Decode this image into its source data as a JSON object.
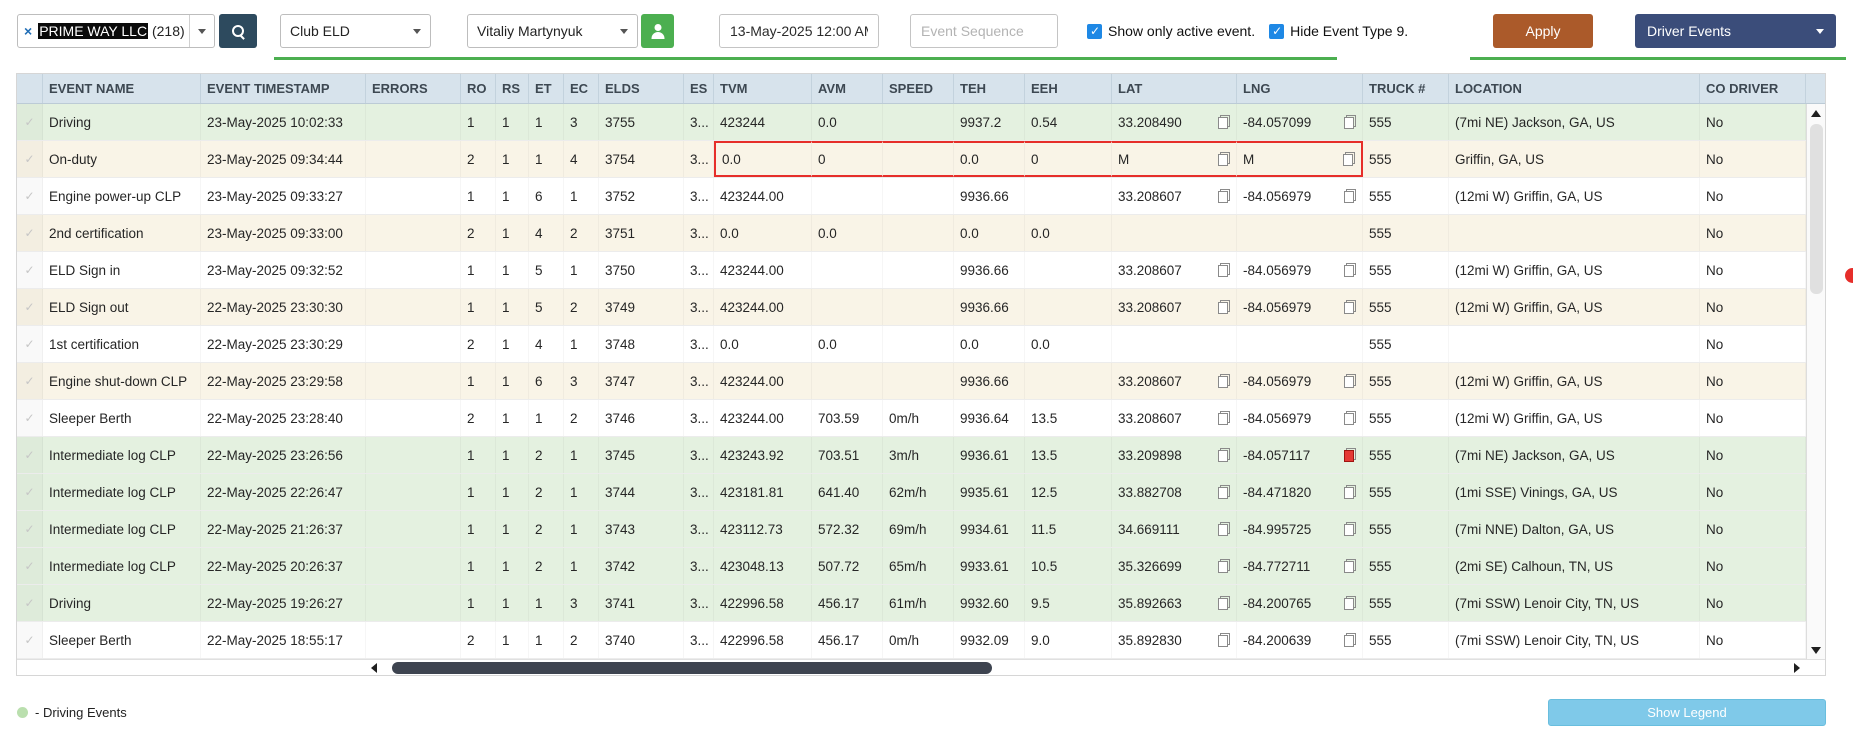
{
  "toolbar": {
    "company_combo": {
      "clear_icon": "×",
      "selected_text": "PRIME WAY LLC",
      "count_suffix": "(218)"
    },
    "eld_select_value": "Club ELD",
    "driver_select_value": "Vitaliy Martynyuk",
    "date_input_value": "13-May-2025 12:00 AM",
    "event_sequence_placeholder": "Event Sequence",
    "checkbox_show_only_active": {
      "checked": true,
      "label": "Show only active event."
    },
    "checkbox_hide_event_type9": {
      "checked": true,
      "label": "Hide Event Type 9."
    },
    "apply_button_label": "Apply",
    "driver_events_button_label": "Driver Events"
  },
  "table": {
    "columns": [
      "EVENT NAME",
      "EVENT TIMESTAMP",
      "ERRORS",
      "RO",
      "RS",
      "ET",
      "EC",
      "ELDS",
      "ES",
      "TVM",
      "AVM",
      "SPEED",
      "TEH",
      "EEH",
      "LAT",
      "LNG",
      "TRUCK #",
      "LOCATION",
      "CO DRIVER"
    ],
    "rows": [
      {
        "event": "Driving",
        "ts": "23-May-2025 10:02:33",
        "errors": "",
        "ro": "1",
        "rs": "1",
        "et": "1",
        "ec": "3",
        "elds": "3755",
        "es": "3...",
        "tvm": "423244",
        "avm": "0.0",
        "speed": "",
        "teh": "9937.2",
        "eeh": "0.54",
        "lat": "33.208490",
        "lng": "-84.057099",
        "truck": "555",
        "location": "(7mi NE) Jackson, GA, US",
        "codriver": "No",
        "type": "green"
      },
      {
        "event": "On-duty",
        "ts": "23-May-2025 09:34:44",
        "errors": "",
        "ro": "2",
        "rs": "1",
        "et": "1",
        "ec": "4",
        "elds": "3754",
        "es": "3...",
        "tvm": "0.0",
        "avm": "0",
        "speed": "",
        "teh": "0.0",
        "eeh": "0",
        "lat": "M",
        "lng": "M",
        "truck": "555",
        "location": "Griffin, GA, US",
        "codriver": "No",
        "type": "beige",
        "highlight": true
      },
      {
        "event": "Engine power-up CLP",
        "ts": "23-May-2025 09:33:27",
        "errors": "",
        "ro": "1",
        "rs": "1",
        "et": "6",
        "ec": "1",
        "elds": "3752",
        "es": "3...",
        "tvm": "423244.00",
        "avm": "",
        "speed": "",
        "teh": "9936.66",
        "eeh": "",
        "lat": "33.208607",
        "lng": "-84.056979",
        "truck": "555",
        "location": "(12mi W) Griffin, GA, US",
        "codriver": "No",
        "type": "white"
      },
      {
        "event": "2nd certification",
        "ts": "23-May-2025 09:33:00",
        "errors": "",
        "ro": "2",
        "rs": "1",
        "et": "4",
        "ec": "2",
        "elds": "3751",
        "es": "3...",
        "tvm": "0.0",
        "avm": "0.0",
        "speed": "",
        "teh": "0.0",
        "eeh": "0.0",
        "lat": "",
        "lng": "",
        "truck": "555",
        "location": "",
        "codriver": "No",
        "type": "beige"
      },
      {
        "event": "ELD Sign in",
        "ts": "23-May-2025 09:32:52",
        "errors": "",
        "ro": "1",
        "rs": "1",
        "et": "5",
        "ec": "1",
        "elds": "3750",
        "es": "3...",
        "tvm": "423244.00",
        "avm": "",
        "speed": "",
        "teh": "9936.66",
        "eeh": "",
        "lat": "33.208607",
        "lng": "-84.056979",
        "truck": "555",
        "location": "(12mi W) Griffin, GA, US",
        "codriver": "No",
        "type": "white"
      },
      {
        "event": "ELD Sign out",
        "ts": "22-May-2025 23:30:30",
        "errors": "",
        "ro": "1",
        "rs": "1",
        "et": "5",
        "ec": "2",
        "elds": "3749",
        "es": "3...",
        "tvm": "423244.00",
        "avm": "",
        "speed": "",
        "teh": "9936.66",
        "eeh": "",
        "lat": "33.208607",
        "lng": "-84.056979",
        "truck": "555",
        "location": "(12mi W) Griffin, GA, US",
        "codriver": "No",
        "type": "beige"
      },
      {
        "event": "1st certification",
        "ts": "22-May-2025 23:30:29",
        "errors": "",
        "ro": "2",
        "rs": "1",
        "et": "4",
        "ec": "1",
        "elds": "3748",
        "es": "3...",
        "tvm": "0.0",
        "avm": "0.0",
        "speed": "",
        "teh": "0.0",
        "eeh": "0.0",
        "lat": "",
        "lng": "",
        "truck": "555",
        "location": "",
        "codriver": "No",
        "type": "white"
      },
      {
        "event": "Engine shut-down CLP",
        "ts": "22-May-2025 23:29:58",
        "errors": "",
        "ro": "1",
        "rs": "1",
        "et": "6",
        "ec": "3",
        "elds": "3747",
        "es": "3...",
        "tvm": "423244.00",
        "avm": "",
        "speed": "",
        "teh": "9936.66",
        "eeh": "",
        "lat": "33.208607",
        "lng": "-84.056979",
        "truck": "555",
        "location": "(12mi W) Griffin, GA, US",
        "codriver": "No",
        "type": "beige"
      },
      {
        "event": "Sleeper Berth",
        "ts": "22-May-2025 23:28:40",
        "errors": "",
        "ro": "2",
        "rs": "1",
        "et": "1",
        "ec": "2",
        "elds": "3746",
        "es": "3...",
        "tvm": "423244.00",
        "avm": "703.59",
        "speed": "0m/h",
        "teh": "9936.64",
        "eeh": "13.5",
        "lat": "33.208607",
        "lng": "-84.056979",
        "truck": "555",
        "location": "(12mi W) Griffin, GA, US",
        "codriver": "No",
        "type": "white"
      },
      {
        "event": "Intermediate log CLP",
        "ts": "22-May-2025 23:26:56",
        "errors": "",
        "ro": "1",
        "rs": "1",
        "et": "2",
        "ec": "1",
        "elds": "3745",
        "es": "3...",
        "tvm": "423243.92",
        "avm": "703.51",
        "speed": "3m/h",
        "teh": "9936.61",
        "eeh": "13.5",
        "lat": "33.209898",
        "lng": "-84.057117",
        "truck": "555",
        "location": "(7mi NE) Jackson, GA, US",
        "codriver": "No",
        "type": "green",
        "lng_icon": "red"
      },
      {
        "event": "Intermediate log CLP",
        "ts": "22-May-2025 22:26:47",
        "errors": "",
        "ro": "1",
        "rs": "1",
        "et": "2",
        "ec": "1",
        "elds": "3744",
        "es": "3...",
        "tvm": "423181.81",
        "avm": "641.40",
        "speed": "62m/h",
        "teh": "9935.61",
        "eeh": "12.5",
        "lat": "33.882708",
        "lng": "-84.471820",
        "truck": "555",
        "location": "(1mi SSE) Vinings, GA, US",
        "codriver": "No",
        "type": "green"
      },
      {
        "event": "Intermediate log CLP",
        "ts": "22-May-2025 21:26:37",
        "errors": "",
        "ro": "1",
        "rs": "1",
        "et": "2",
        "ec": "1",
        "elds": "3743",
        "es": "3...",
        "tvm": "423112.73",
        "avm": "572.32",
        "speed": "69m/h",
        "teh": "9934.61",
        "eeh": "11.5",
        "lat": "34.669111",
        "lng": "-84.995725",
        "truck": "555",
        "location": "(7mi NNE) Dalton, GA, US",
        "codriver": "No",
        "type": "green"
      },
      {
        "event": "Intermediate log CLP",
        "ts": "22-May-2025 20:26:37",
        "errors": "",
        "ro": "1",
        "rs": "1",
        "et": "2",
        "ec": "1",
        "elds": "3742",
        "es": "3...",
        "tvm": "423048.13",
        "avm": "507.72",
        "speed": "65m/h",
        "teh": "9933.61",
        "eeh": "10.5",
        "lat": "35.326699",
        "lng": "-84.772711",
        "truck": "555",
        "location": "(2mi SE) Calhoun, TN, US",
        "codriver": "No",
        "type": "green"
      },
      {
        "event": "Driving",
        "ts": "22-May-2025 19:26:27",
        "errors": "",
        "ro": "1",
        "rs": "1",
        "et": "1",
        "ec": "3",
        "elds": "3741",
        "es": "3...",
        "tvm": "422996.58",
        "avm": "456.17",
        "speed": "61m/h",
        "teh": "9932.60",
        "eeh": "9.5",
        "lat": "35.892663",
        "lng": "-84.200765",
        "truck": "555",
        "location": "(7mi SSW) Lenoir City, TN, US",
        "codriver": "No",
        "type": "green"
      },
      {
        "event": "Sleeper Berth",
        "ts": "22-May-2025 18:55:17",
        "errors": "",
        "ro": "2",
        "rs": "1",
        "et": "1",
        "ec": "2",
        "elds": "3740",
        "es": "3...",
        "tvm": "422996.58",
        "avm": "456.17",
        "speed": "0m/h",
        "teh": "9932.09",
        "eeh": "9.0",
        "lat": "35.892830",
        "lng": "-84.200639",
        "truck": "555",
        "location": "(7mi SSW) Lenoir City, TN, US",
        "codriver": "No",
        "type": "white"
      }
    ]
  },
  "footer": {
    "legend_label": "- Driving Events",
    "show_legend_button_label": "Show Legend"
  },
  "colors": {
    "accent_green": "#4caf50",
    "apply_brown": "#ab5a2a",
    "navy_button": "#3b4d7a",
    "search_button": "#2d4a5e",
    "highlight_red": "#e62e2a",
    "row_green": "#e4f1e0",
    "row_beige": "#f9f4e7",
    "header_bg": "#d7e3ec",
    "show_legend_blue": "#7fc9e9",
    "checkbox_blue": "#1e88e5"
  }
}
